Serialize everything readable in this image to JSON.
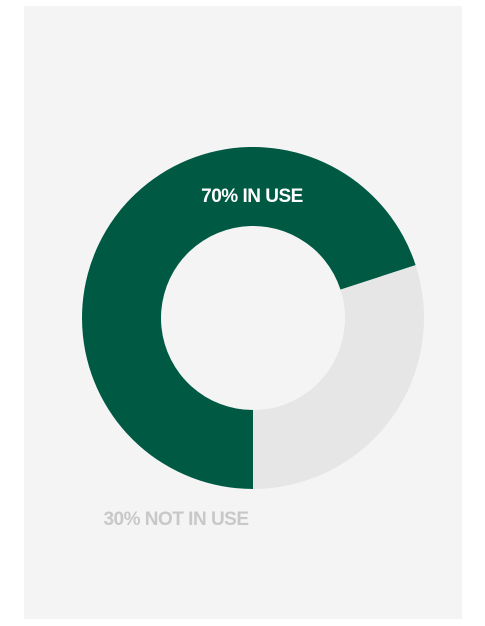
{
  "chart_data": {
    "type": "pie",
    "variant": "donut",
    "categories": [
      "IN USE",
      "NOT IN USE"
    ],
    "values": [
      70,
      30
    ],
    "colors": [
      "#005a43",
      "#e6e6e6"
    ],
    "data_labels": [
      "70% IN USE",
      "30% NOT IN USE"
    ],
    "label_colors": [
      "#ffffff",
      "#c8c8c8"
    ],
    "background": "#f4f4f4"
  }
}
